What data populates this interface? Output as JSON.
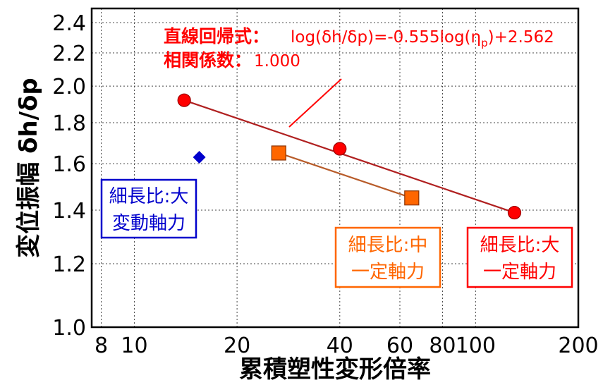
{
  "chart_data": {
    "type": "scatter",
    "x_scale": "log",
    "y_scale": "log",
    "xlim": [
      7.5,
      200
    ],
    "ylim": [
      1.0,
      2.5
    ],
    "grid": true,
    "xlabel": "累積塑性変形倍率",
    "ylabel": "変位振幅 δh/δp",
    "x_ticks": [
      8,
      10,
      20,
      40,
      60,
      80,
      100,
      200
    ],
    "x_tick_labels": [
      "8",
      "10",
      "20",
      "40",
      "60",
      "80",
      "100",
      "200"
    ],
    "y_ticks": [
      1.0,
      1.2,
      1.4,
      1.6,
      1.8,
      2.0,
      2.2,
      2.4
    ],
    "y_tick_labels": [
      "1.0",
      "1.2",
      "1.4",
      "1.6",
      "1.8",
      "2.0",
      "2.2",
      "2.4"
    ],
    "series": [
      {
        "name": "細長比:大 一定軸力",
        "marker": "circle",
        "color": "#ff0000",
        "points": [
          [
            14.0,
            1.92
          ],
          [
            40.0,
            1.67
          ],
          [
            130.0,
            1.39
          ]
        ]
      },
      {
        "name": "細長比:中 一定軸力",
        "marker": "square",
        "color": "#ff6600",
        "points": [
          [
            26.5,
            1.65
          ],
          [
            65.0,
            1.45
          ]
        ]
      },
      {
        "name": "細長比:大 変動軸力",
        "marker": "diamond",
        "color": "#0000cc",
        "points": [
          [
            15.5,
            1.63
          ]
        ]
      }
    ],
    "fit_lines": [
      {
        "series": "細長比:大 一定軸力",
        "from": [
          14.0,
          1.92
        ],
        "to": [
          130.0,
          1.39
        ],
        "color": "#b02020"
      },
      {
        "series": "細長比:中 一定軸力",
        "from": [
          26.5,
          1.65
        ],
        "to": [
          65.0,
          1.45
        ],
        "color": "#b85c2a"
      }
    ],
    "annotations": {
      "regression_label": "直線回帰式：",
      "regression_formula_a": "log(δh/δp)=-0.555log(η",
      "regression_formula_sub": "p",
      "regression_formula_b": ")+2.562",
      "correlation_label": "相関係数：",
      "correlation_value": "1.000"
    },
    "legend_boxes": [
      {
        "line1": "細長比:大",
        "line2": "変動軸力",
        "color": "#0000cc"
      },
      {
        "line1": "細長比:中",
        "line2": "一定軸力",
        "color": "#ff6600"
      },
      {
        "line1": "細長比:大",
        "line2": "一定軸力",
        "color": "#ff0000"
      }
    ]
  }
}
